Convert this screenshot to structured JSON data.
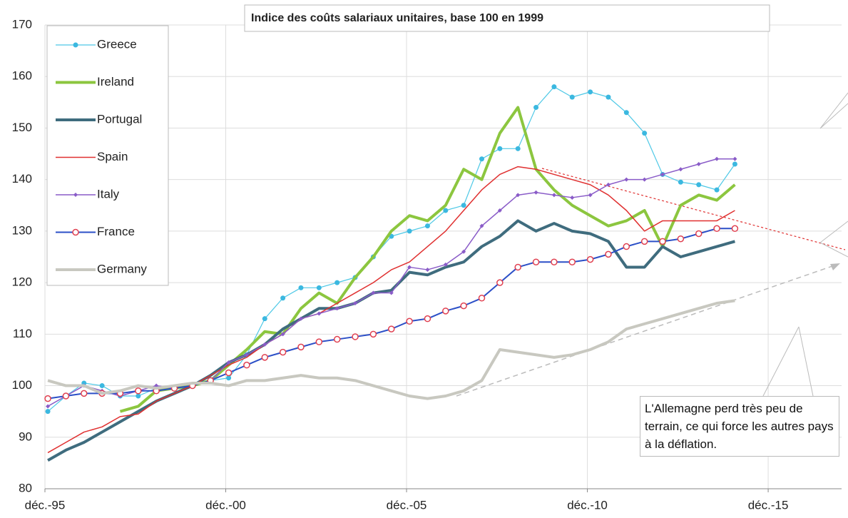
{
  "chart_data": {
    "type": "line",
    "title": "Indice des coûts salariaux unitaires, base 100 en 1999",
    "annotation": "L'Allemagne perd très peu de terrain, ce qui force les autres pays à la déflation.",
    "x": [
      1996,
      1996.5,
      1997,
      1997.5,
      1998,
      1998.5,
      1999,
      1999.5,
      2000,
      2000.5,
      2001,
      2001.5,
      2002,
      2002.5,
      2003,
      2003.5,
      2004,
      2004.5,
      2005,
      2005.5,
      2006,
      2006.5,
      2007,
      2007.5,
      2008,
      2008.5,
      2009,
      2009.5,
      2010,
      2010.5,
      2011,
      2011.5,
      2012,
      2012.5,
      2013,
      2013.5,
      2014,
      2014.5,
      2015
    ],
    "series": [
      {
        "name": "Greece",
        "color": "#4dc8e6",
        "width": 1.2,
        "marker": "dot",
        "marker_color": "#3bb8e0",
        "values": [
          95,
          98,
          100.5,
          100,
          98,
          98,
          99.5,
          99.5,
          100,
          101,
          101.5,
          106,
          113,
          117,
          119,
          119,
          120,
          121,
          125,
          129,
          130,
          131,
          134,
          135,
          144,
          146,
          146,
          154,
          158,
          156,
          157,
          156,
          153,
          149,
          141,
          139.5,
          139,
          138,
          143
        ]
      },
      {
        "name": "Ireland",
        "color": "#8cc63f",
        "width": 4,
        "marker": "none",
        "values": [
          null,
          null,
          null,
          null,
          95,
          96,
          99,
          99.5,
          100,
          101,
          104,
          107,
          110.5,
          110,
          115,
          118,
          116,
          121,
          125,
          130,
          133,
          132,
          135,
          142,
          140,
          149,
          154,
          142,
          138,
          135,
          133,
          131,
          132,
          134,
          127,
          135,
          137,
          136,
          139
        ]
      },
      {
        "name": "Portugal",
        "color": "#3f6c7e",
        "width": 4,
        "marker": "none",
        "values": [
          85.5,
          87.5,
          89,
          91,
          93,
          95,
          97,
          98.5,
          100,
          102,
          104.5,
          106,
          108,
          111,
          113,
          115,
          115,
          116,
          118,
          118.5,
          122,
          121.5,
          123,
          124,
          127,
          129,
          132,
          130,
          131.5,
          130,
          129.5,
          128,
          123,
          123,
          127,
          125,
          126,
          127,
          128
        ]
      },
      {
        "name": "Spain",
        "color": "#e03030",
        "width": 1.5,
        "marker": "none",
        "values": [
          87,
          89,
          91,
          92,
          94,
          94.5,
          97,
          98.5,
          100,
          102,
          104,
          105.5,
          108,
          110,
          113,
          114,
          116,
          118,
          120,
          122.5,
          124,
          127,
          130,
          134,
          138,
          141,
          142.5,
          142,
          141,
          140,
          139,
          137,
          134,
          130,
          132,
          132,
          132,
          132,
          134
        ]
      },
      {
        "name": "Italy",
        "color": "#8a5cc8",
        "width": 1.5,
        "marker": "diamond",
        "marker_color": "#8a5cc8",
        "values": [
          96,
          98,
          100,
          99,
          98,
          99,
          100,
          99.5,
          100,
          101,
          104.5,
          106,
          108,
          110,
          113,
          114,
          115,
          116,
          118,
          118,
          123,
          122.5,
          123.5,
          126,
          131,
          134,
          137,
          137.5,
          137,
          136.5,
          137,
          139,
          140,
          140,
          141,
          142,
          143,
          144,
          144
        ]
      },
      {
        "name": "France",
        "color": "#2b4fc7",
        "width": 2,
        "marker": "circle",
        "marker_color": "#e04050",
        "values": [
          97.5,
          98,
          98.5,
          98.5,
          98.5,
          99,
          99,
          99.5,
          100,
          101,
          102.5,
          104,
          105.5,
          106.5,
          107.5,
          108.5,
          109,
          109.5,
          110,
          111,
          112.5,
          113,
          114.5,
          115.5,
          117,
          120,
          123,
          124,
          124,
          124,
          124.5,
          125.5,
          127,
          128,
          128,
          128.5,
          129.5,
          130.5,
          130.5
        ]
      },
      {
        "name": "Germany",
        "color": "#c8c8c0",
        "width": 4,
        "marker": "none",
        "values": [
          101,
          100,
          100,
          98.5,
          99,
          100,
          99.5,
          100,
          100.5,
          100.5,
          100,
          101,
          101,
          101.5,
          102,
          101.5,
          101.5,
          101,
          100,
          99,
          98,
          97.5,
          98,
          99,
          101,
          107,
          106.5,
          106,
          105.5,
          106,
          107,
          108.5,
          111,
          112,
          113,
          114,
          115,
          116,
          116.5
        ]
      }
    ],
    "xlim": [
      1995.92,
      2017.95
    ],
    "xticks": [
      {
        "value": 1995.92,
        "label": "déc.-95"
      },
      {
        "value": 2000.92,
        "label": "déc.-00"
      },
      {
        "value": 2005.92,
        "label": "déc.-05"
      },
      {
        "value": 2010.92,
        "label": "déc.-10"
      },
      {
        "value": 2015.92,
        "label": "déc.-15"
      }
    ],
    "ylim": [
      80,
      170
    ],
    "yticks": [
      80,
      90,
      100,
      110,
      120,
      130,
      140,
      150,
      160,
      170
    ],
    "grid": true,
    "legend": "upper left"
  }
}
